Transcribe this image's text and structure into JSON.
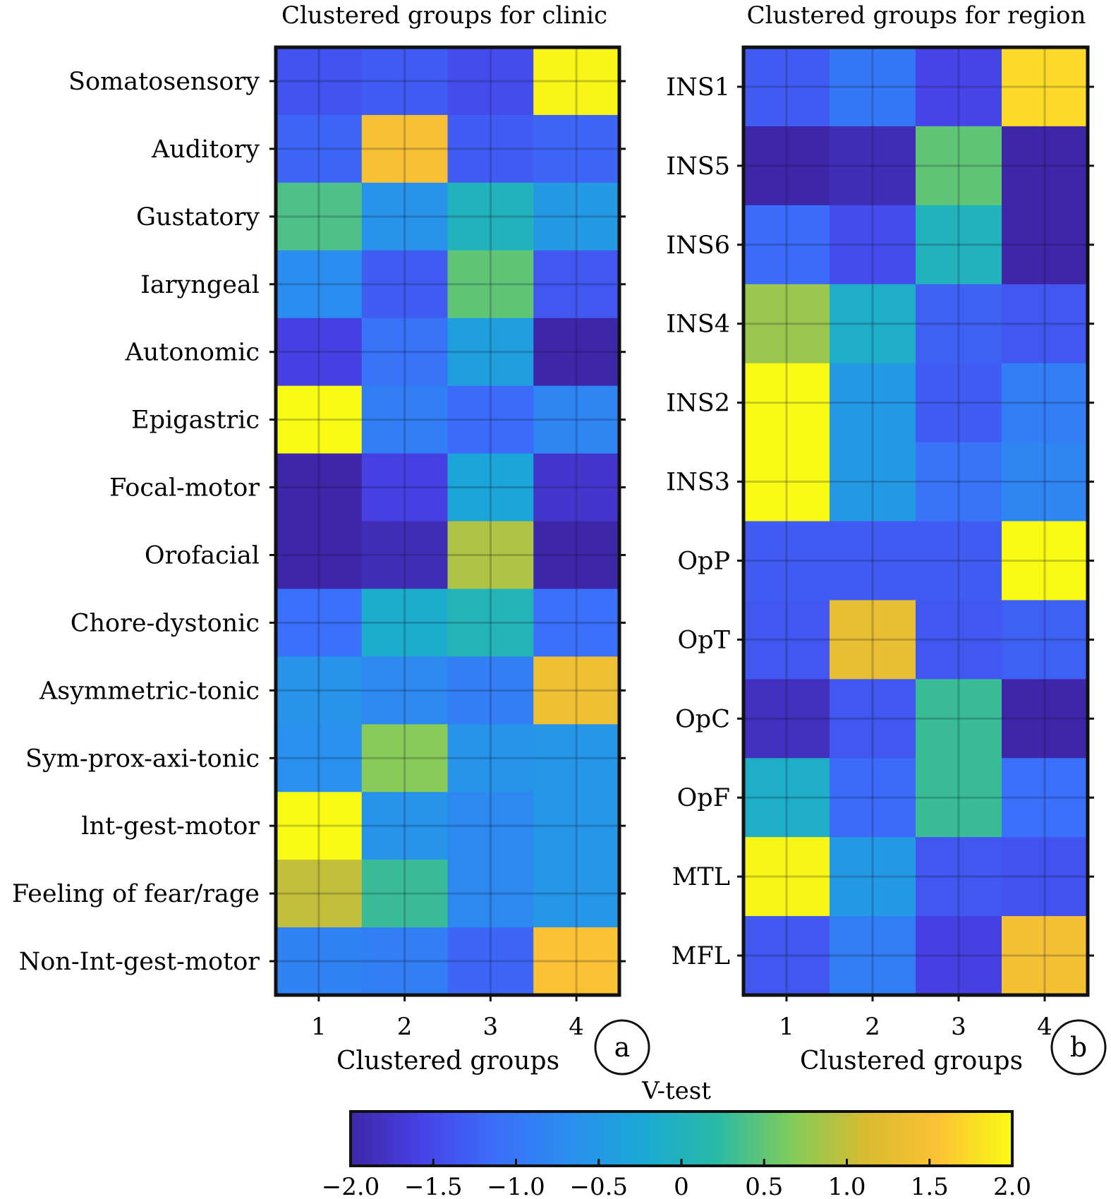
{
  "colorbar": {
    "title": "V-test",
    "min": -2.0,
    "max": 2.0,
    "tick_values": [
      -2.0,
      -1.5,
      -1.0,
      -0.5,
      0,
      0.5,
      1.0,
      1.5,
      2.0
    ],
    "tick_labels": [
      "−2.0",
      "−1.5",
      "−1.0",
      "−0.5",
      "0",
      "0.5",
      "1.0",
      "1.5",
      "2.0"
    ],
    "colormap": [
      "#3e26a8",
      "#4743e8",
      "#3a6ffa",
      "#2a8fee",
      "#19aad4",
      "#2bbaa4",
      "#81cc5b",
      "#d9bb2f",
      "#fcc236",
      "#f9fb15"
    ]
  },
  "chart_data": [
    {
      "type": "heatmap",
      "panel_letter": "a",
      "title": "Clustered groups for clinic",
      "xlabel": "Clustered groups",
      "ylabel": "",
      "x": [
        "1",
        "2",
        "3",
        "4"
      ],
      "y": [
        "Somatosensory",
        "Auditory",
        "Gustatory",
        "Iaryngeal",
        "Autonomic",
        "Epigastric",
        "Focal-motor",
        "Orofacial",
        "Chore-dystonic",
        "Asymmetric-tonic",
        "Sym-prox-axi-tonic",
        "lnt-gest-motor",
        "Feeling of fear/rage",
        "Non-Int-gest-motor"
      ],
      "values": [
        [
          -1.4,
          -1.3,
          -1.45,
          1.95
        ],
        [
          -1.2,
          1.5,
          -1.3,
          -1.2
        ],
        [
          0.4,
          -0.6,
          0.0,
          -0.5
        ],
        [
          -0.7,
          -1.3,
          0.5,
          -1.35
        ],
        [
          -1.6,
          -1.05,
          -0.4,
          -2.0
        ],
        [
          2.0,
          -0.9,
          -1.15,
          -0.8
        ],
        [
          -2.0,
          -1.6,
          -0.3,
          -1.75
        ],
        [
          -2.0,
          -1.9,
          0.9,
          -2.0
        ],
        [
          -1.1,
          -0.15,
          0.05,
          -1.1
        ],
        [
          -0.6,
          -0.75,
          -0.9,
          1.4
        ],
        [
          -0.65,
          0.7,
          -0.6,
          -0.55
        ],
        [
          2.0,
          -0.6,
          -0.75,
          -0.55
        ],
        [
          1.0,
          0.3,
          -0.75,
          -0.55
        ],
        [
          -0.85,
          -0.9,
          -1.2,
          1.55
        ]
      ],
      "zlim": [
        -2.0,
        2.0
      ],
      "grid": true
    },
    {
      "type": "heatmap",
      "panel_letter": "b",
      "title": "Clustered groups for region",
      "xlabel": "Clustered groups",
      "ylabel": "",
      "x": [
        "1",
        "2",
        "3",
        "4"
      ],
      "y": [
        "INS1",
        "INS5",
        "INS6",
        "INS4",
        "INS2",
        "INS3",
        "OpP",
        "OpT",
        "OpC",
        "OpF",
        "MTL",
        "MFL"
      ],
      "values": [
        [
          -1.3,
          -1.0,
          -1.55,
          1.75
        ],
        [
          -2.0,
          -1.9,
          0.5,
          -2.0
        ],
        [
          -1.15,
          -1.45,
          0.0,
          -2.0
        ],
        [
          0.8,
          -0.1,
          -1.25,
          -1.35
        ],
        [
          2.0,
          -0.5,
          -1.3,
          -0.9
        ],
        [
          2.0,
          -0.5,
          -1.05,
          -0.8
        ],
        [
          -1.3,
          -1.3,
          -1.3,
          2.0
        ],
        [
          -1.35,
          1.3,
          -1.35,
          -1.25
        ],
        [
          -1.85,
          -1.35,
          0.3,
          -2.0
        ],
        [
          -0.1,
          -1.15,
          0.3,
          -1.1
        ],
        [
          1.95,
          -0.5,
          -1.35,
          -1.4
        ],
        [
          -1.35,
          -0.9,
          -1.6,
          1.45
        ]
      ],
      "zlim": [
        -2.0,
        2.0
      ],
      "grid": true
    }
  ]
}
